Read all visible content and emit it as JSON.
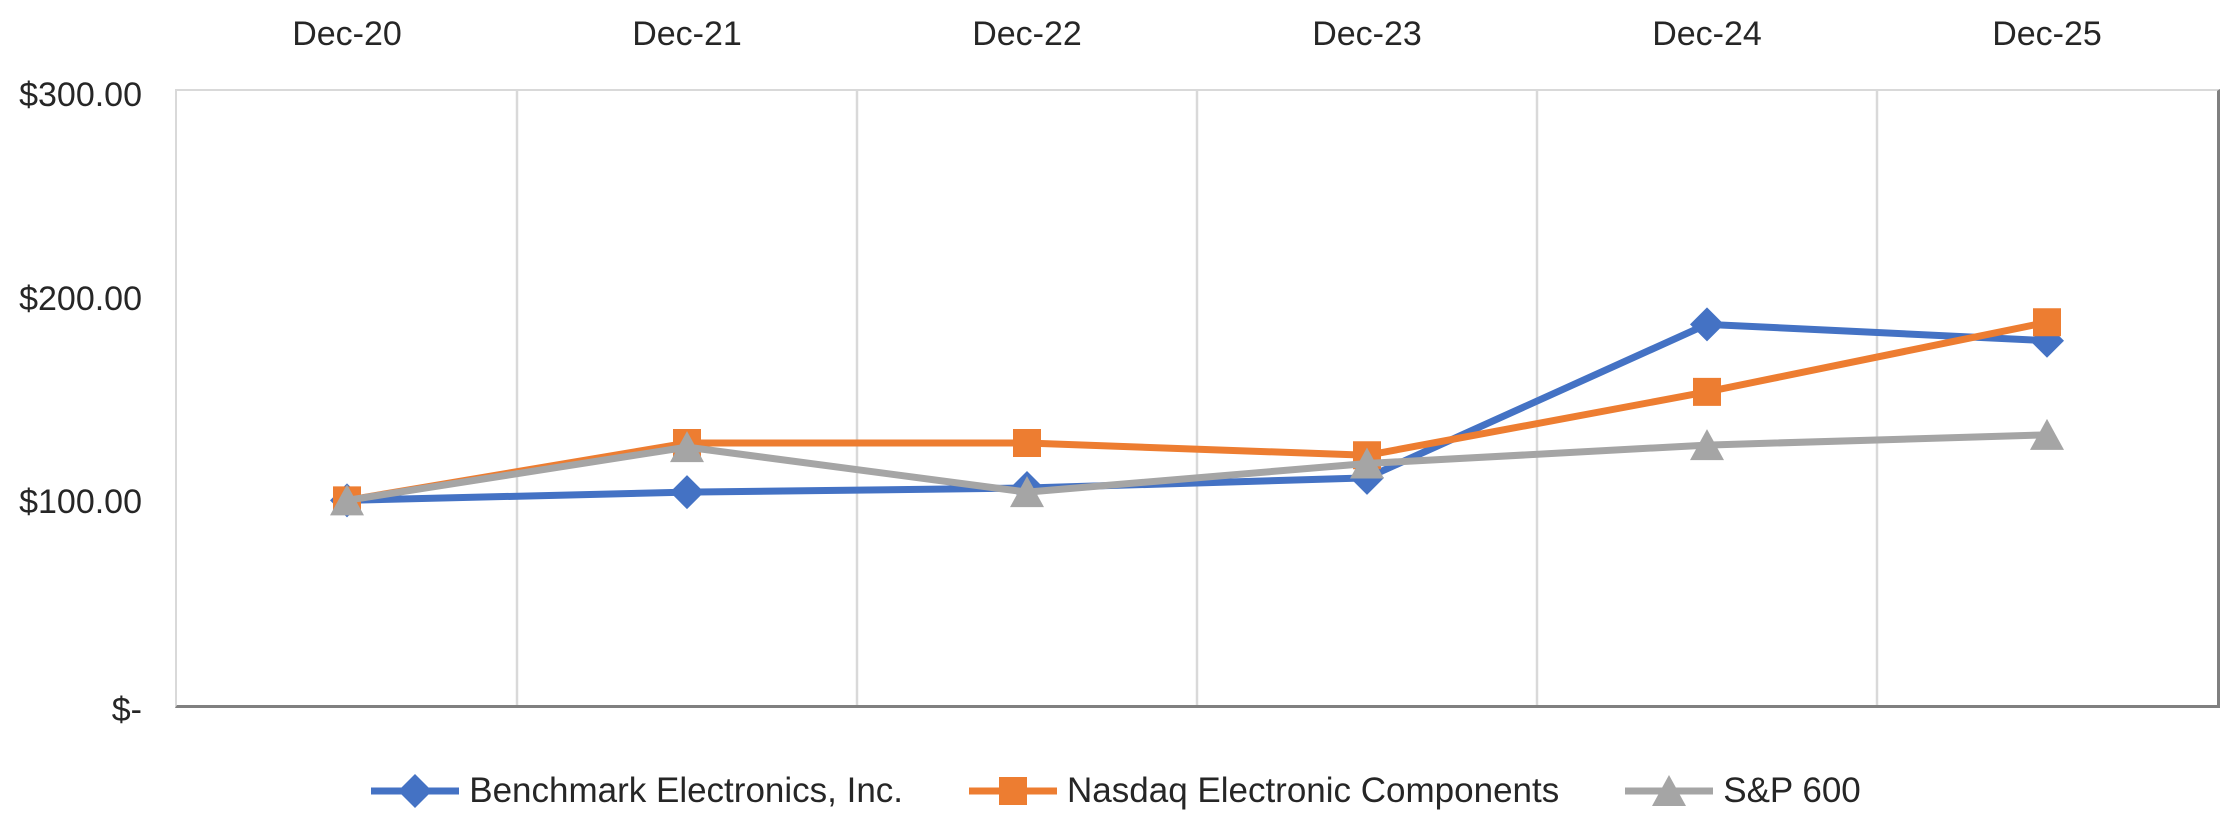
{
  "chart_data": {
    "type": "line",
    "title": "",
    "categories": [
      "Dec-20",
      "Dec-21",
      "Dec-22",
      "Dec-23",
      "Dec-24",
      "Dec-25"
    ],
    "series": [
      {
        "name": "Benchmark Electronics, Inc.",
        "marker": "diamond",
        "color": "#4472C4",
        "values": [
          100,
          104,
          106,
          111,
          186,
          178
        ]
      },
      {
        "name": "Nasdaq Electronic Components",
        "marker": "square",
        "color": "#ED7D31",
        "values": [
          100,
          128,
          128,
          122,
          153,
          187
        ]
      },
      {
        "name": "S&P 600",
        "marker": "triangle",
        "color": "#A5A5A5",
        "values": [
          100,
          126,
          104,
          118,
          127,
          132
        ]
      }
    ],
    "y_axis": {
      "min": 0,
      "max": 300,
      "ticks": [
        {
          "value": 300,
          "label": "$300.00"
        },
        {
          "value": 200,
          "label": "$200.00"
        },
        {
          "value": 100,
          "label": "$100.00"
        },
        {
          "value": 0,
          "label": "$-"
        }
      ]
    },
    "x_axis": {
      "position": "top"
    },
    "legend": {
      "position": "bottom"
    },
    "grid": {
      "vertical": true,
      "horizontal": false,
      "color": "#D9D9D9"
    },
    "axis_line_color": "#808080",
    "text_color": "#262626",
    "background": "#FFFFFF"
  }
}
